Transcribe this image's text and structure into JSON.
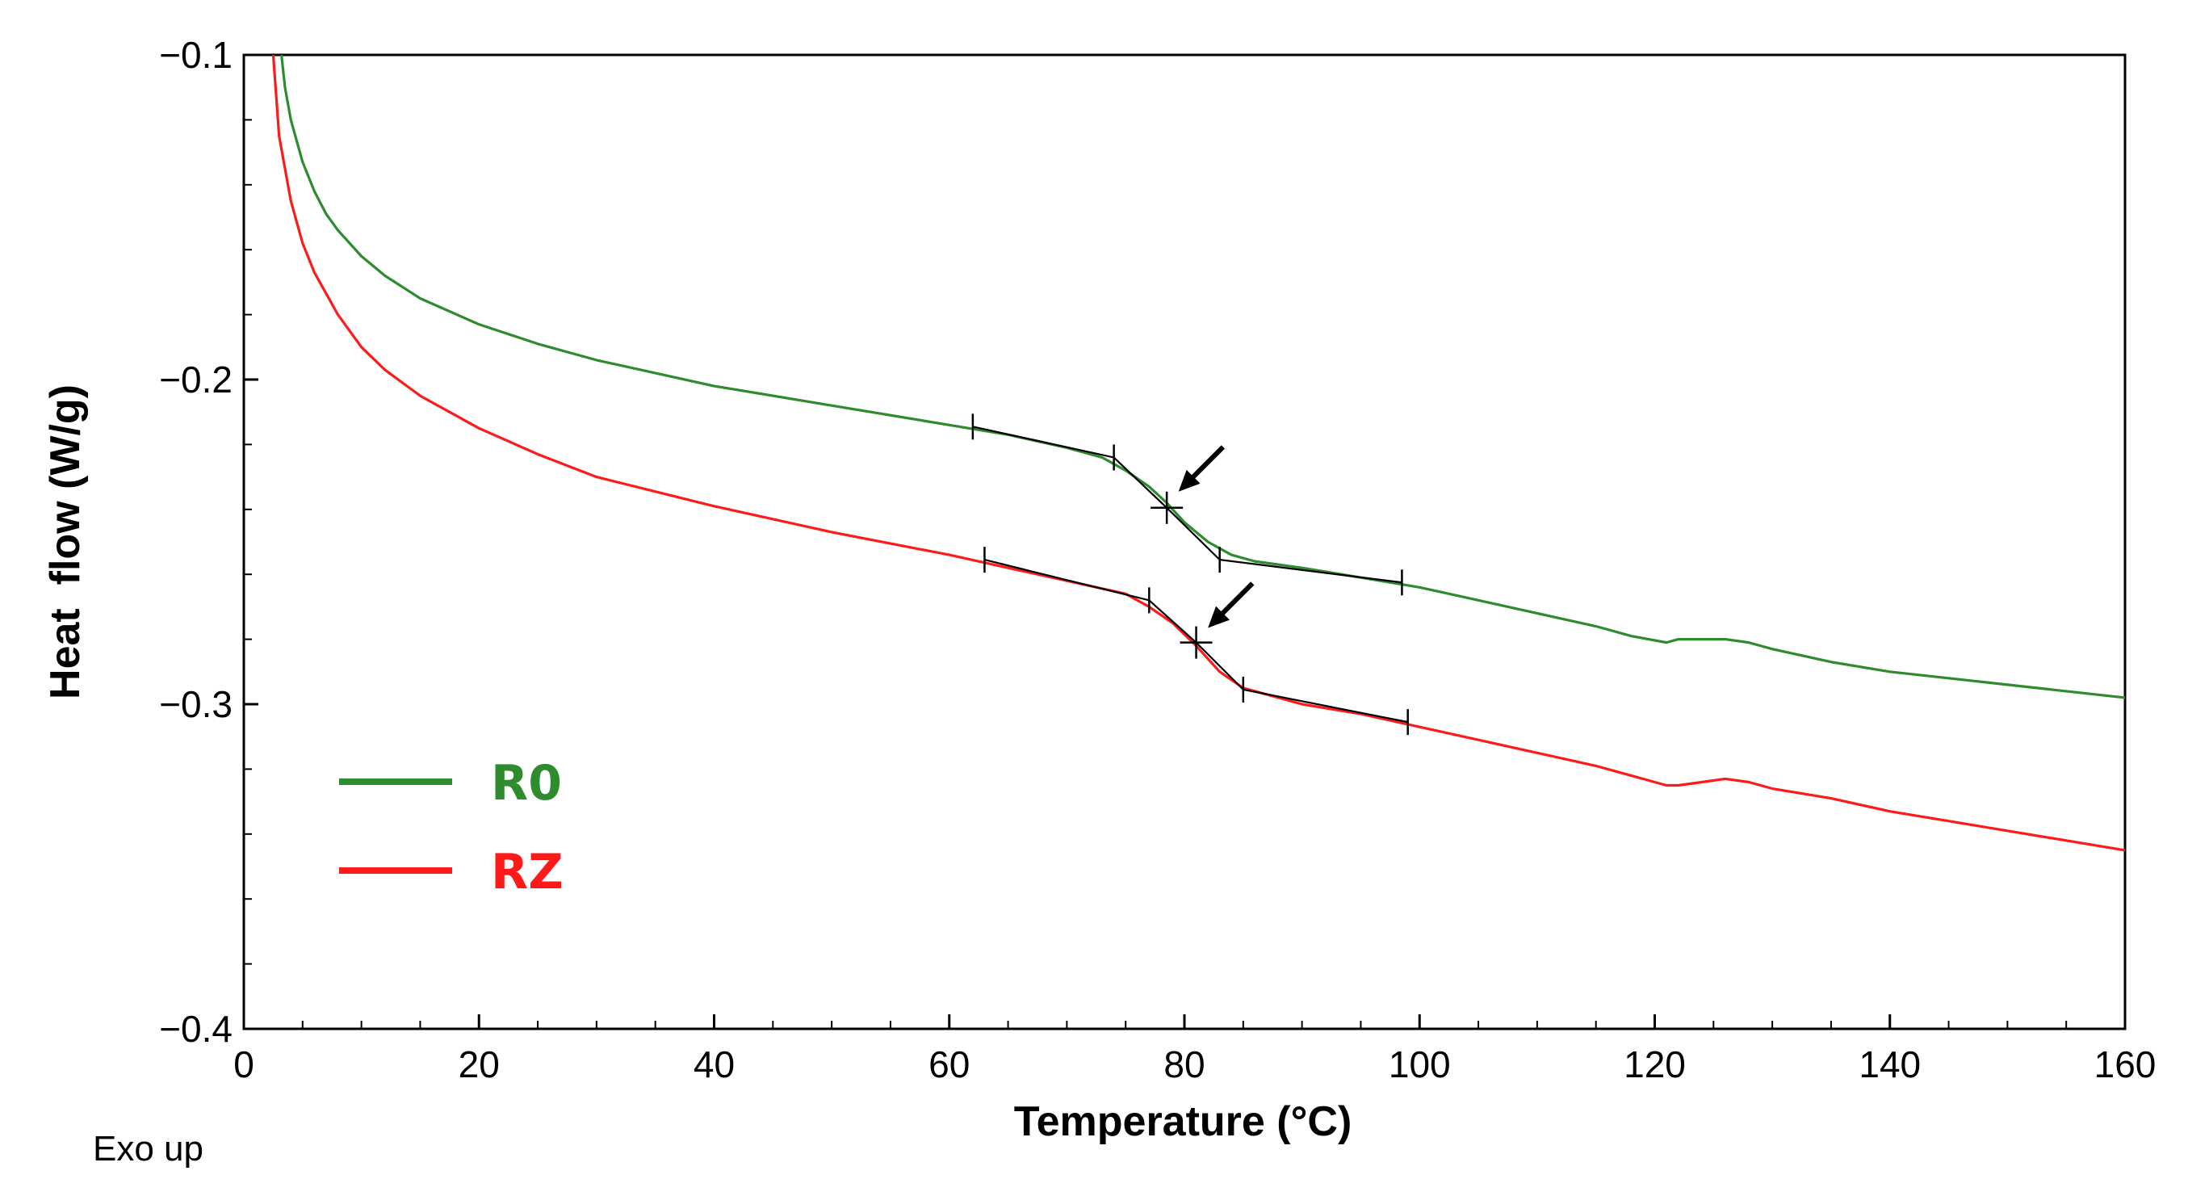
{
  "chart_data": {
    "type": "line",
    "title": "",
    "xlabel": "Temperature (°C)",
    "ylabel": "Heat  flow (W/g)",
    "xlim": [
      0,
      160
    ],
    "ylim": [
      -0.4,
      -0.1
    ],
    "xticks": [
      0,
      20,
      40,
      60,
      80,
      100,
      120,
      140,
      160
    ],
    "xtick_labels": [
      "0",
      "20",
      "40",
      "60",
      "80",
      "100",
      "120",
      "140",
      "160"
    ],
    "yticks": [
      -0.1,
      -0.2,
      -0.3,
      -0.4
    ],
    "ytick_labels": [
      "−0.1",
      "−0.2",
      "−0.3",
      "−0.4"
    ],
    "grid": false,
    "legend_position": "bottom-left",
    "note": "Exo up",
    "series": [
      {
        "name": "R0",
        "color": "#2e8b2e",
        "x": [
          3.2,
          3.5,
          4,
          5,
          6,
          7,
          8,
          10,
          12,
          15,
          20,
          25,
          30,
          40,
          50,
          60,
          65,
          70,
          73,
          75,
          77,
          78.5,
          80,
          82,
          84,
          86,
          90,
          95,
          100,
          105,
          110,
          115,
          118,
          121,
          122,
          124,
          126,
          128,
          130,
          135,
          140,
          145,
          150,
          155,
          160
        ],
        "y": [
          -0.1,
          -0.11,
          -0.12,
          -0.133,
          -0.142,
          -0.149,
          -0.154,
          -0.162,
          -0.168,
          -0.175,
          -0.183,
          -0.189,
          -0.194,
          -0.202,
          -0.208,
          -0.214,
          -0.217,
          -0.221,
          -0.224,
          -0.228,
          -0.233,
          -0.238,
          -0.244,
          -0.25,
          -0.254,
          -0.256,
          -0.258,
          -0.261,
          -0.264,
          -0.268,
          -0.272,
          -0.276,
          -0.279,
          -0.281,
          -0.28,
          -0.28,
          -0.28,
          -0.281,
          -0.283,
          -0.287,
          -0.29,
          -0.292,
          -0.294,
          -0.296,
          -0.298
        ]
      },
      {
        "name": "RZ",
        "color": "#ff1a1a",
        "x": [
          2.5,
          3,
          4,
          5,
          6,
          8,
          10,
          12,
          15,
          20,
          25,
          30,
          40,
          50,
          60,
          65,
          70,
          75,
          77,
          79,
          81,
          83,
          85,
          88,
          90,
          95,
          100,
          105,
          110,
          115,
          118,
          121,
          122,
          124,
          126,
          128,
          130,
          135,
          140,
          145,
          150,
          155,
          160
        ],
        "y": [
          -0.1,
          -0.125,
          -0.145,
          -0.158,
          -0.167,
          -0.18,
          -0.19,
          -0.197,
          -0.205,
          -0.215,
          -0.223,
          -0.23,
          -0.239,
          -0.247,
          -0.254,
          -0.258,
          -0.262,
          -0.266,
          -0.27,
          -0.275,
          -0.282,
          -0.29,
          -0.295,
          -0.298,
          -0.3,
          -0.303,
          -0.307,
          -0.311,
          -0.315,
          -0.319,
          -0.322,
          -0.325,
          -0.325,
          -0.324,
          -0.323,
          -0.324,
          -0.326,
          -0.329,
          -0.333,
          -0.336,
          -0.339,
          -0.342,
          -0.345
        ]
      }
    ],
    "tangent_lines": [
      {
        "series": "R0",
        "x": [
          62,
          74,
          78.5,
          83,
          98.5
        ],
        "y": [
          -0.2145,
          -0.224,
          -0.2395,
          -0.2555,
          -0.2625
        ],
        "midpoint_x": 78.5,
        "midpoint_y": -0.2395
      },
      {
        "series": "RZ",
        "x": [
          63,
          77,
          81,
          85,
          99
        ],
        "y": [
          -0.2555,
          -0.268,
          -0.281,
          -0.2955,
          -0.3055
        ],
        "midpoint_x": 81,
        "midpoint_y": -0.281
      }
    ],
    "annotations": [
      {
        "type": "arrow",
        "points_to_x": 79.5,
        "points_to_y": -0.2345
      },
      {
        "type": "arrow",
        "points_to_x": 82,
        "points_to_y": -0.2765
      }
    ]
  }
}
